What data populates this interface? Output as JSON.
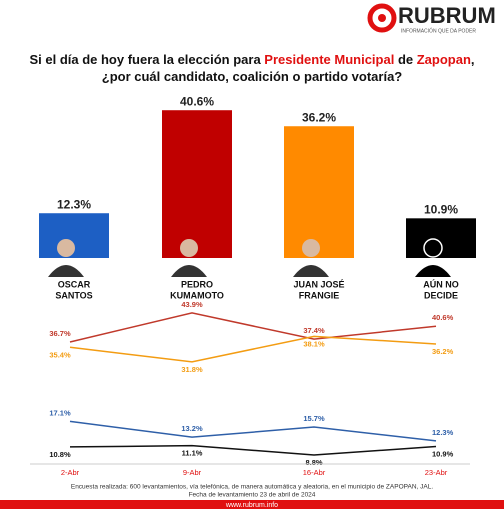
{
  "logo": {
    "name": "RUBRUM",
    "tagline": "INFORMACIÓN QUE DA PODER"
  },
  "title_lines": [
    [
      {
        "text": "Si el día de hoy fuera la elección para ",
        "color": "#111111"
      },
      {
        "text": "Presidente Municipal",
        "color": "#e01010"
      },
      {
        "text": " de ",
        "color": "#111111"
      },
      {
        "text": "Zapopan",
        "color": "#e01010"
      },
      {
        "text": ",",
        "color": "#111111"
      }
    ],
    [
      {
        "text": "¿por cuál candidato, coalición o partido votaría?",
        "color": "#111111"
      }
    ]
  ],
  "chart_data": [
    {
      "type": "bar",
      "categories": [
        [
          "OSCAR",
          "SANTOS"
        ],
        [
          "PEDRO",
          "KUMAMOTO"
        ],
        [
          "JUAN JOSÉ",
          "FRANGIE"
        ],
        [
          "AÚN NO",
          "DECIDE"
        ]
      ],
      "values": [
        12.3,
        40.6,
        36.2,
        10.9
      ],
      "value_labels": [
        "12.3%",
        "40.6%",
        "36.2%",
        "10.9%"
      ],
      "colors": [
        "#1d5fc4",
        "#c00000",
        "#ff8a00",
        "#000000"
      ]
    },
    {
      "type": "line",
      "x": [
        "2-Abr",
        "9-Abr",
        "16-Abr",
        "23-Abr"
      ],
      "series": [
        {
          "color": "#c0392b",
          "values": [
            36.7,
            43.9,
            37.4,
            40.6
          ],
          "value_labels": [
            "36.7%",
            "43.9%",
            "37.4%",
            "40.6%"
          ]
        },
        {
          "color": "#f39c12",
          "values": [
            35.4,
            31.8,
            38.1,
            36.2
          ],
          "value_labels": [
            "35.4%",
            "31.8%",
            "38.1%",
            "36.2%"
          ]
        },
        {
          "color": "#2e5fa8",
          "values": [
            17.1,
            13.2,
            15.7,
            12.3
          ],
          "value_labels": [
            "17.1%",
            "13.2%",
            "15.7%",
            "12.3%"
          ]
        },
        {
          "color": "#111111",
          "values": [
            10.8,
            11.1,
            8.8,
            10.9
          ],
          "value_labels": [
            "10.8%",
            "11.1%",
            "8.8%",
            "10.9%"
          ]
        }
      ]
    }
  ],
  "footnote": [
    "Encuesta realizada: 600 levantamientos, vía telefónica, de manera automática y aleatoria, en el municipio de ZAPOPAN, JAL.",
    "Fecha de levantamiento 23 de abril de 2024"
  ],
  "footer": "www.rubrum.info"
}
